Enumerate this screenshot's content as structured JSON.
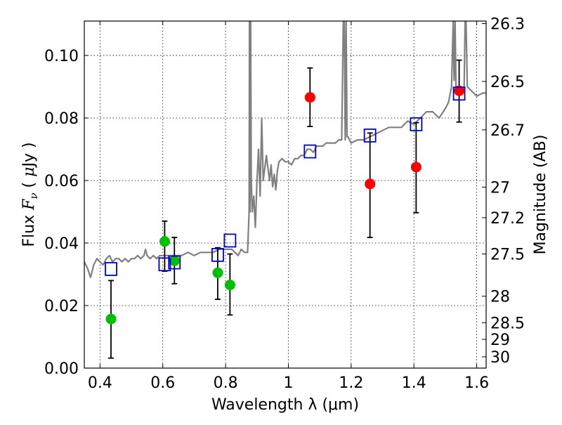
{
  "chart_data": {
    "type": "scatter",
    "title": "",
    "xlabel": "Wavelength  λ (μm)",
    "ylabel_parts": [
      "Flux  ",
      "F",
      "ν",
      "  (  ",
      "μ",
      "Jy  )"
    ],
    "ylabel_right": "Magnitude (AB)",
    "xlim": [
      0.35,
      1.63
    ],
    "ylim": [
      0.0,
      0.111
    ],
    "grid": true,
    "x_ticks": [
      0.4,
      0.6,
      0.8,
      1.0,
      1.2,
      1.4,
      1.6
    ],
    "x_tick_labels": [
      "0.4",
      "0.6",
      "0.8",
      "1",
      "1.2",
      "1.4",
      "1.6"
    ],
    "y_ticks": [
      0.0,
      0.02,
      0.04,
      0.06,
      0.08,
      0.1
    ],
    "y_tick_labels": [
      "0.00",
      "0.02",
      "0.04",
      "0.06",
      "0.08",
      "0.10"
    ],
    "right_ticks": [
      {
        "label": "26.3",
        "flux": 0.1102
      },
      {
        "label": "26.5",
        "flux": 0.0917
      },
      {
        "label": "26.7",
        "flux": 0.0762
      },
      {
        "label": "27",
        "flux": 0.0579
      },
      {
        "label": "27.2",
        "flux": 0.0481
      },
      {
        "label": "27.5",
        "flux": 0.0365
      },
      {
        "label": "28",
        "flux": 0.023
      },
      {
        "label": "28.5",
        "flux": 0.0145
      },
      {
        "label": "29",
        "flux": 0.0092
      },
      {
        "label": "30",
        "flux": 0.0036
      }
    ],
    "series": [
      {
        "color": "#00c000",
        "marker": "circle",
        "points": [
          {
            "x": 0.435,
            "y": 0.0157,
            "yerr_low": 0.0032,
            "yerr_high": 0.028
          },
          {
            "x": 0.606,
            "y": 0.0405,
            "yerr_low": 0.031,
            "yerr_high": 0.047
          },
          {
            "x": 0.637,
            "y": 0.0343,
            "yerr_low": 0.027,
            "yerr_high": 0.0418
          },
          {
            "x": 0.775,
            "y": 0.0305,
            "yerr_low": 0.022,
            "yerr_high": 0.0385
          },
          {
            "x": 0.814,
            "y": 0.0266,
            "yerr_low": 0.017,
            "yerr_high": 0.0365
          }
        ]
      },
      {
        "color": "#ff0000",
        "marker": "circle",
        "points": [
          {
            "x": 1.069,
            "y": 0.0866,
            "yerr_low": 0.0773,
            "yerr_high": 0.096
          },
          {
            "x": 1.26,
            "y": 0.0589,
            "yerr_low": 0.0418,
            "yerr_high": 0.0752
          },
          {
            "x": 1.407,
            "y": 0.0643,
            "yerr_low": 0.0497,
            "yerr_high": 0.0785
          },
          {
            "x": 1.544,
            "y": 0.0887,
            "yerr_low": 0.0787,
            "yerr_high": 0.0985
          }
        ]
      },
      {
        "color": "#0000cc",
        "marker": "open-square",
        "points": [
          {
            "x": 0.435,
            "y": 0.0317
          },
          {
            "x": 0.606,
            "y": 0.0332
          },
          {
            "x": 0.637,
            "y": 0.0338
          },
          {
            "x": 0.775,
            "y": 0.0362
          },
          {
            "x": 0.814,
            "y": 0.0408
          },
          {
            "x": 1.069,
            "y": 0.0693
          },
          {
            "x": 1.26,
            "y": 0.0744
          },
          {
            "x": 1.407,
            "y": 0.078
          },
          {
            "x": 1.544,
            "y": 0.0878
          }
        ]
      }
    ],
    "sed_model": {
      "color": "#808080",
      "x": [
        0.35,
        0.36,
        0.37,
        0.375,
        0.38,
        0.39,
        0.4,
        0.41,
        0.42,
        0.43,
        0.44,
        0.45,
        0.46,
        0.47,
        0.48,
        0.49,
        0.5,
        0.51,
        0.52,
        0.53,
        0.54,
        0.545,
        0.55,
        0.56,
        0.57,
        0.58,
        0.59,
        0.6,
        0.62,
        0.64,
        0.66,
        0.68,
        0.7,
        0.72,
        0.74,
        0.76,
        0.78,
        0.8,
        0.82,
        0.83,
        0.84,
        0.85,
        0.86,
        0.87,
        0.875,
        0.876,
        0.878,
        0.88,
        0.882,
        0.885,
        0.89,
        0.895,
        0.9,
        0.905,
        0.91,
        0.915,
        0.92,
        0.93,
        0.94,
        0.945,
        0.95,
        0.955,
        0.96,
        0.965,
        0.97,
        0.98,
        0.99,
        1.0,
        1.01,
        1.02,
        1.03,
        1.04,
        1.05,
        1.06,
        1.07,
        1.08,
        1.09,
        1.1,
        1.11,
        1.12,
        1.13,
        1.14,
        1.15,
        1.16,
        1.17,
        1.175,
        1.178,
        1.181,
        1.184,
        1.187,
        1.19,
        1.2,
        1.22,
        1.24,
        1.26,
        1.28,
        1.3,
        1.32,
        1.34,
        1.36,
        1.38,
        1.4,
        1.42,
        1.44,
        1.46,
        1.48,
        1.5,
        1.51,
        1.52,
        1.525,
        1.528,
        1.531,
        1.534,
        1.54,
        1.55,
        1.56,
        1.563,
        1.566,
        1.57,
        1.58,
        1.6,
        1.62,
        1.63
      ],
      "y": [
        0.034,
        0.032,
        0.029,
        0.031,
        0.033,
        0.035,
        0.034,
        0.033,
        0.035,
        0.036,
        0.034,
        0.035,
        0.035,
        0.034,
        0.035,
        0.034,
        0.035,
        0.035,
        0.036,
        0.035,
        0.036,
        0.038,
        0.036,
        0.035,
        0.036,
        0.035,
        0.036,
        0.036,
        0.036,
        0.036,
        0.036,
        0.037,
        0.036,
        0.037,
        0.037,
        0.037,
        0.038,
        0.038,
        0.038,
        0.037,
        0.036,
        0.038,
        0.037,
        0.037,
        0.05,
        0.111,
        0.05,
        0.111,
        0.06,
        0.05,
        0.055,
        0.045,
        0.06,
        0.07,
        0.055,
        0.08,
        0.06,
        0.068,
        0.06,
        0.065,
        0.058,
        0.062,
        0.057,
        0.063,
        0.066,
        0.067,
        0.066,
        0.066,
        0.065,
        0.067,
        0.067,
        0.068,
        0.068,
        0.07,
        0.07,
        0.069,
        0.071,
        0.071,
        0.071,
        0.072,
        0.072,
        0.072,
        0.072,
        0.073,
        0.073,
        0.111,
        0.111,
        0.073,
        0.111,
        0.074,
        0.074,
        0.072,
        0.073,
        0.073,
        0.074,
        0.075,
        0.076,
        0.077,
        0.077,
        0.077,
        0.079,
        0.078,
        0.08,
        0.082,
        0.082,
        0.08,
        0.083,
        0.085,
        0.09,
        0.111,
        0.092,
        0.111,
        0.09,
        0.089,
        0.088,
        0.09,
        0.111,
        0.111,
        0.09,
        0.089,
        0.087,
        0.088,
        0.088
      ]
    }
  }
}
